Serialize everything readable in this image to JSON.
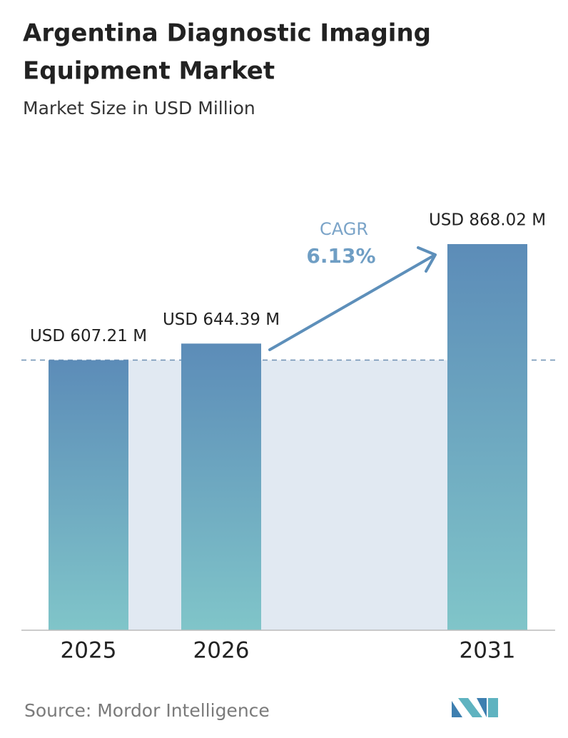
{
  "chart_data": {
    "type": "bar",
    "title": [
      "Argentina Diagnostic Imaging",
      "Equipment Market"
    ],
    "subtitle": "Market Size in USD Million",
    "categories": [
      "2025",
      "2026",
      "2031"
    ],
    "values": [
      607.21,
      644.39,
      868.02
    ],
    "value_labels": [
      "USD 607.21 M",
      "USD 644.39 M",
      "USD 868.02 M"
    ],
    "gradient": [
      "#5c8cb8",
      "#80c5c9"
    ],
    "annotations": [
      "CAGR",
      "6.13%"
    ],
    "source": "Source: Mordor Intelligence"
  }
}
